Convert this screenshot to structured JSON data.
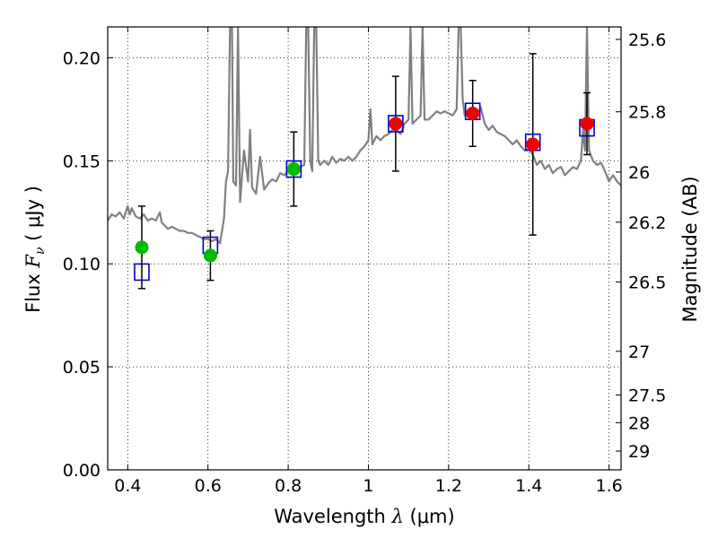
{
  "chart_data": {
    "type": "scatter",
    "xlabel": {
      "prefix": "Wavelength  ",
      "symbol": "λ",
      "unit": " (μm)"
    },
    "ylabel": {
      "prefix": "Flux  ",
      "symbol": "F",
      "sub": "ν",
      "unit": "  ( μJy )"
    },
    "y2label": "Magnitude (AB)",
    "xlim": [
      0.35,
      1.63
    ],
    "ylim": [
      0.0,
      0.215
    ],
    "grid": true,
    "x_ticks": [
      {
        "value": 0.4,
        "label": "0.4"
      },
      {
        "value": 0.6,
        "label": "0.6"
      },
      {
        "value": 0.8,
        "label": "0.8"
      },
      {
        "value": 1.0,
        "label": "1"
      },
      {
        "value": 1.2,
        "label": "1.2"
      },
      {
        "value": 1.4,
        "label": "1.4"
      },
      {
        "value": 1.6,
        "label": "1.6"
      }
    ],
    "y_ticks": [
      {
        "value": 0.0,
        "label": "0.00"
      },
      {
        "value": 0.05,
        "label": "0.05"
      },
      {
        "value": 0.1,
        "label": "0.10"
      },
      {
        "value": 0.15,
        "label": "0.15"
      },
      {
        "value": 0.2,
        "label": "0.20"
      }
    ],
    "y2_ticks": [
      {
        "mag": 25.6,
        "label": "25.6"
      },
      {
        "mag": 25.8,
        "label": "25.8"
      },
      {
        "mag": 26.0,
        "label": "26"
      },
      {
        "mag": 26.2,
        "label": "26.2"
      },
      {
        "mag": 26.5,
        "label": "26.5"
      },
      {
        "mag": 27.0,
        "label": "27"
      },
      {
        "mag": 27.5,
        "label": "27.5"
      },
      {
        "mag": 28.0,
        "label": "28"
      },
      {
        "mag": 29.0,
        "label": "29"
      }
    ],
    "series": [
      {
        "kind": "model_spectrum",
        "color": "#808080",
        "points": [
          [
            0.35,
            0.121
          ],
          [
            0.36,
            0.124
          ],
          [
            0.37,
            0.123
          ],
          [
            0.38,
            0.125
          ],
          [
            0.39,
            0.122
          ],
          [
            0.398,
            0.127
          ],
          [
            0.4,
            0.128
          ],
          [
            0.405,
            0.124
          ],
          [
            0.41,
            0.127
          ],
          [
            0.42,
            0.123
          ],
          [
            0.43,
            0.122
          ],
          [
            0.44,
            0.124
          ],
          [
            0.45,
            0.121
          ],
          [
            0.46,
            0.122
          ],
          [
            0.47,
            0.121
          ],
          [
            0.48,
            0.125
          ],
          [
            0.485,
            0.12
          ],
          [
            0.49,
            0.119
          ],
          [
            0.5,
            0.117
          ],
          [
            0.51,
            0.118
          ],
          [
            0.52,
            0.117
          ],
          [
            0.53,
            0.116
          ],
          [
            0.54,
            0.116
          ],
          [
            0.55,
            0.115
          ],
          [
            0.56,
            0.115
          ],
          [
            0.57,
            0.114
          ],
          [
            0.58,
            0.113
          ],
          [
            0.59,
            0.112
          ],
          [
            0.6,
            0.112
          ],
          [
            0.61,
            0.111
          ],
          [
            0.62,
            0.112
          ],
          [
            0.63,
            0.11
          ],
          [
            0.64,
            0.122
          ],
          [
            0.645,
            0.14
          ],
          [
            0.65,
            0.145
          ],
          [
            0.655,
            0.215
          ],
          [
            0.66,
            0.215
          ],
          [
            0.663,
            0.14
          ],
          [
            0.67,
            0.138
          ],
          [
            0.675,
            0.215
          ],
          [
            0.68,
            0.13
          ],
          [
            0.69,
            0.155
          ],
          [
            0.7,
            0.14
          ],
          [
            0.705,
            0.165
          ],
          [
            0.71,
            0.137
          ],
          [
            0.72,
            0.134
          ],
          [
            0.73,
            0.152
          ],
          [
            0.74,
            0.136
          ],
          [
            0.75,
            0.139
          ],
          [
            0.76,
            0.141
          ],
          [
            0.77,
            0.14
          ],
          [
            0.78,
            0.144
          ],
          [
            0.79,
            0.143
          ],
          [
            0.8,
            0.145
          ],
          [
            0.81,
            0.146
          ],
          [
            0.82,
            0.145
          ],
          [
            0.83,
            0.147
          ],
          [
            0.84,
            0.148
          ],
          [
            0.845,
            0.215
          ],
          [
            0.85,
            0.215
          ],
          [
            0.855,
            0.15
          ],
          [
            0.86,
            0.145
          ],
          [
            0.865,
            0.215
          ],
          [
            0.87,
            0.215
          ],
          [
            0.875,
            0.15
          ],
          [
            0.88,
            0.148
          ],
          [
            0.89,
            0.15
          ],
          [
            0.9,
            0.148
          ],
          [
            0.91,
            0.152
          ],
          [
            0.92,
            0.149
          ],
          [
            0.93,
            0.151
          ],
          [
            0.94,
            0.15
          ],
          [
            0.95,
            0.152
          ],
          [
            0.96,
            0.15
          ],
          [
            0.97,
            0.152
          ],
          [
            0.98,
            0.155
          ],
          [
            0.99,
            0.157
          ],
          [
            1.0,
            0.16
          ],
          [
            1.005,
            0.175
          ],
          [
            1.01,
            0.158
          ],
          [
            1.02,
            0.162
          ],
          [
            1.03,
            0.16
          ],
          [
            1.04,
            0.162
          ],
          [
            1.05,
            0.163
          ],
          [
            1.06,
            0.165
          ],
          [
            1.07,
            0.165
          ],
          [
            1.08,
            0.163
          ],
          [
            1.09,
            0.168
          ],
          [
            1.1,
            0.17
          ],
          [
            1.105,
            0.215
          ],
          [
            1.11,
            0.168
          ],
          [
            1.12,
            0.17
          ],
          [
            1.13,
            0.172
          ],
          [
            1.135,
            0.215
          ],
          [
            1.14,
            0.17
          ],
          [
            1.15,
            0.17
          ],
          [
            1.16,
            0.172
          ],
          [
            1.17,
            0.174
          ],
          [
            1.18,
            0.173
          ],
          [
            1.19,
            0.174
          ],
          [
            1.2,
            0.173
          ],
          [
            1.21,
            0.172
          ],
          [
            1.22,
            0.175
          ],
          [
            1.225,
            0.215
          ],
          [
            1.23,
            0.215
          ],
          [
            1.235,
            0.18
          ],
          [
            1.24,
            0.172
          ],
          [
            1.25,
            0.175
          ],
          [
            1.26,
            0.172
          ],
          [
            1.27,
            0.171
          ],
          [
            1.28,
            0.176
          ],
          [
            1.29,
            0.168
          ],
          [
            1.3,
            0.165
          ],
          [
            1.31,
            0.167
          ],
          [
            1.32,
            0.164
          ],
          [
            1.33,
            0.163
          ],
          [
            1.34,
            0.162
          ],
          [
            1.35,
            0.16
          ],
          [
            1.36,
            0.158
          ],
          [
            1.37,
            0.16
          ],
          [
            1.38,
            0.157
          ],
          [
            1.39,
            0.155
          ],
          [
            1.4,
            0.156
          ],
          [
            1.41,
            0.153
          ],
          [
            1.42,
            0.148
          ],
          [
            1.43,
            0.15
          ],
          [
            1.44,
            0.146
          ],
          [
            1.45,
            0.148
          ],
          [
            1.46,
            0.144
          ],
          [
            1.47,
            0.146
          ],
          [
            1.48,
            0.147
          ],
          [
            1.49,
            0.143
          ],
          [
            1.5,
            0.145
          ],
          [
            1.51,
            0.147
          ],
          [
            1.52,
            0.146
          ],
          [
            1.53,
            0.15
          ],
          [
            1.535,
            0.165
          ],
          [
            1.54,
            0.155
          ],
          [
            1.545,
            0.215
          ],
          [
            1.55,
            0.155
          ],
          [
            1.56,
            0.15
          ],
          [
            1.57,
            0.148
          ],
          [
            1.58,
            0.149
          ],
          [
            1.59,
            0.145
          ],
          [
            1.6,
            0.14
          ],
          [
            1.61,
            0.143
          ],
          [
            1.62,
            0.14
          ],
          [
            1.63,
            0.138
          ]
        ]
      },
      {
        "kind": "photometry",
        "points": [
          {
            "x": 0.435,
            "y": 0.108,
            "err": 0.02,
            "color": "#00bb00",
            "model": 0.096
          },
          {
            "x": 0.606,
            "y": 0.104,
            "err": 0.012,
            "color": "#00bb00",
            "model": 0.109
          },
          {
            "x": 0.814,
            "y": 0.146,
            "err": 0.018,
            "color": "#00bb00",
            "model": 0.146
          },
          {
            "x": 1.068,
            "y": 0.168,
            "err": 0.023,
            "color": "#ee0000",
            "model": 0.168
          },
          {
            "x": 1.26,
            "y": 0.173,
            "err": 0.016,
            "color": "#ee0000",
            "model": 0.174
          },
          {
            "x": 1.41,
            "y": 0.158,
            "err": 0.044,
            "color": "#ee0000",
            "model": 0.159
          },
          {
            "x": 1.545,
            "y": 0.168,
            "err": 0.015,
            "color": "#ee0000",
            "model": 0.166
          }
        ]
      }
    ]
  }
}
